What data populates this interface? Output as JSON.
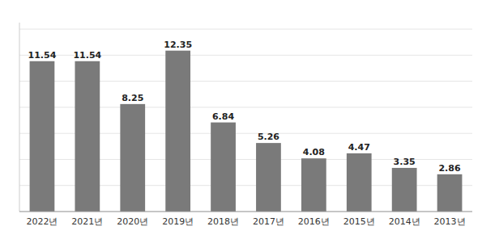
{
  "chart_data": {
    "type": "bar",
    "categories": [
      "2022년",
      "2021년",
      "2020년",
      "2019년",
      "2018년",
      "2017년",
      "2016년",
      "2015년",
      "2014년",
      "2013년"
    ],
    "values": [
      11.54,
      11.54,
      8.25,
      12.35,
      6.84,
      5.26,
      4.08,
      4.47,
      3.35,
      2.86
    ],
    "color": "#7a7a7a",
    "ylim": [
      0,
      14.5
    ],
    "yticks": [
      0,
      2,
      4,
      6,
      8,
      10,
      12,
      14
    ],
    "grid": true,
    "data_labels": true,
    "tick_labels": "x"
  }
}
